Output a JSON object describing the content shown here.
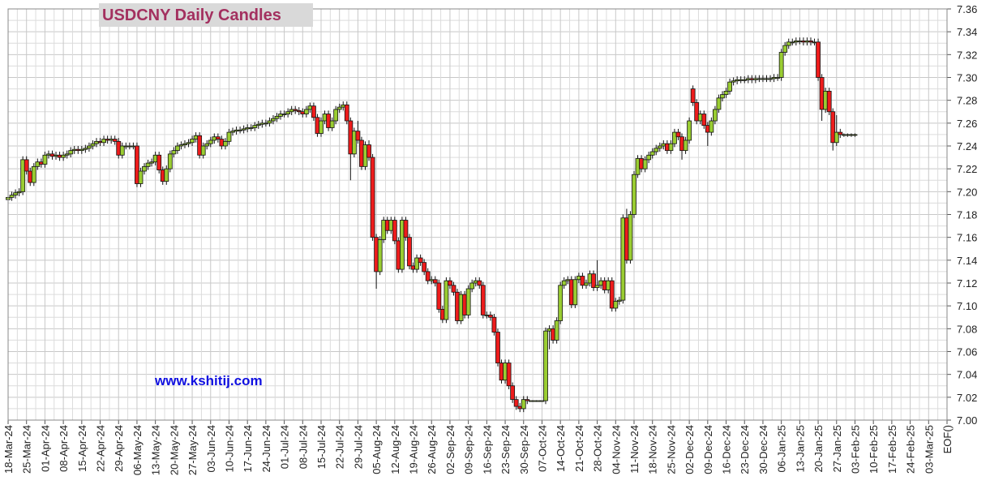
{
  "chart_data": {
    "type": "candlestick",
    "title": "USDCNY Daily Candles",
    "annotation": "www.kshitij.com",
    "up_color": "#9acd32",
    "down_color": "#ee1c1c",
    "grid": true,
    "ylim": [
      7.0,
      7.36
    ],
    "yticks": [
      {
        "value": 7,
        "label": "7.00"
      },
      7.02,
      7.04,
      7.06,
      7.08,
      {
        "value": 7.1,
        "label": "7.10"
      },
      7.12,
      7.14,
      7.16,
      7.18,
      {
        "value": 7.2,
        "label": "7.20"
      },
      7.22,
      7.24,
      7.26,
      7.28,
      {
        "value": 7.3,
        "label": "7.30"
      },
      7.32,
      7.34,
      7.36
    ],
    "categories": [
      "18-Mar-24",
      null,
      null,
      null,
      null,
      "25-Mar-24",
      null,
      null,
      null,
      null,
      "01-Apr-24",
      null,
      null,
      null,
      null,
      "08-Apr-24",
      null,
      null,
      null,
      null,
      "15-Apr-24",
      null,
      null,
      null,
      null,
      "22-Apr-24",
      null,
      null,
      null,
      null,
      "29-Apr-24",
      null,
      null,
      null,
      null,
      "06-May-24",
      null,
      null,
      null,
      null,
      "13-May-24",
      null,
      null,
      null,
      null,
      "20-May-24",
      null,
      null,
      null,
      null,
      "27-May-24",
      null,
      null,
      null,
      null,
      "03-Jun-24",
      null,
      null,
      null,
      null,
      "10-Jun-24",
      null,
      null,
      null,
      null,
      "17-Jun-24",
      null,
      null,
      null,
      null,
      "24-Jun-24",
      null,
      null,
      null,
      null,
      "01-Jul-24",
      null,
      null,
      null,
      null,
      "08-Jul-24",
      null,
      null,
      null,
      null,
      "15-Jul-24",
      null,
      null,
      null,
      null,
      "22-Jul-24",
      null,
      null,
      null,
      null,
      "29-Jul-24",
      null,
      null,
      null,
      null,
      "05-Aug-24",
      null,
      null,
      null,
      null,
      "12-Aug-24",
      null,
      null,
      null,
      null,
      "19-Aug-24",
      null,
      null,
      null,
      null,
      "26-Aug-24",
      null,
      null,
      null,
      null,
      "02-Sep-24",
      null,
      null,
      null,
      null,
      "09-Sep-24",
      null,
      null,
      null,
      null,
      "16-Sep-24",
      null,
      null,
      null,
      null,
      "23-Sep-24",
      null,
      null,
      null,
      null,
      "30-Sep-24",
      null,
      null,
      null,
      null,
      "07-Oct-24",
      null,
      null,
      null,
      null,
      "14-Oct-24",
      null,
      null,
      null,
      null,
      "21-Oct-24",
      null,
      null,
      null,
      null,
      "28-Oct-24",
      null,
      null,
      null,
      null,
      "04-Nov-24",
      null,
      null,
      null,
      null,
      "11-Nov-24",
      null,
      null,
      null,
      null,
      "18-Nov-24",
      null,
      null,
      null,
      null,
      "25-Nov-24",
      null,
      null,
      null,
      null,
      "02-Dec-24",
      null,
      null,
      null,
      null,
      "09-Dec-24",
      null,
      null,
      null,
      null,
      "16-Dec-24",
      null,
      null,
      null,
      null,
      "23-Dec-24",
      null,
      null,
      null,
      null,
      "30-Dec-24",
      null,
      null,
      null,
      null,
      "06-Jan-25",
      null,
      null,
      null,
      null,
      "13-Jan-25",
      null,
      null,
      null,
      null,
      "20-Jan-25",
      null,
      null,
      null,
      null,
      "27-Jan-25",
      null,
      null,
      null,
      null,
      "03-Feb-25",
      null,
      null,
      null,
      null,
      "10-Feb-25",
      null,
      null,
      null,
      null,
      "17-Feb-25",
      null,
      null,
      null,
      null,
      "24-Feb-25",
      null,
      null,
      null,
      null,
      "03-Mar-25",
      null,
      null,
      null,
      null,
      "EOF()"
    ],
    "open": [
      7.193,
      7.195,
      7.197,
      7.199,
      7.2,
      7.228,
      7.218,
      7.208,
      7.222,
      7.226,
      7.224,
      7.232,
      7.233,
      7.231,
      7.232,
      7.23,
      7.232,
      7.233,
      7.236,
      7.237,
      7.236,
      7.237,
      7.238,
      7.24,
      7.242,
      7.244,
      7.243,
      7.246,
      7.245,
      7.246,
      7.244,
      7.232,
      7.24,
      7.24,
      7.24,
      7.24,
      7.207,
      7.218,
      7.222,
      7.225,
      7.226,
      7.232,
      7.219,
      7.209,
      7.22,
      7.233,
      7.236,
      7.24,
      7.241,
      7.242,
      7.243,
      7.246,
      7.249,
      7.232,
      7.24,
      7.242,
      7.245,
      7.248,
      7.246,
      7.24,
      7.244,
      7.252,
      7.253,
      7.254,
      7.254,
      7.255,
      7.256,
      7.256,
      7.258,
      7.259,
      7.26,
      7.26,
      7.262,
      7.264,
      7.266,
      7.268,
      7.268,
      7.27,
      7.272,
      7.271,
      7.27,
      7.268,
      7.272,
      7.275,
      7.265,
      7.251,
      7.262,
      7.268,
      7.256,
      7.262,
      7.272,
      7.274,
      7.276,
      7.262,
      7.233,
      7.253,
      7.245,
      7.222,
      7.241,
      7.23,
      7.16,
      7.13,
      7.158,
      7.175,
      7.166,
      7.175,
      7.157,
      7.132,
      7.175,
      7.16,
      7.135,
      7.132,
      7.142,
      7.138,
      7.13,
      7.122,
      7.123,
      7.12,
      7.097,
      7.088,
      7.122,
      7.118,
      7.112,
      7.087,
      7.11,
      7.092,
      7.115,
      7.12,
      7.122,
      7.118,
      7.092,
      7.092,
      7.09,
      7.077,
      7.05,
      7.035,
      7.05,
      7.03,
      7.018,
      7.012,
      7.01,
      7.018,
      7.017,
      7.017,
      7.017,
      7.017,
      7.017,
      7.078,
      7.08,
      7.07,
      7.087,
      7.118,
      7.122,
      7.123,
      7.101,
      7.123,
      7.126,
      7.118,
      7.12,
      7.128,
      7.116,
      7.118,
      7.122,
      7.114,
      7.122,
      7.098,
      7.104,
      7.105,
      7.177,
      7.14,
      7.18,
      7.215,
      7.229,
      7.22,
      7.228,
      7.232,
      7.235,
      7.238,
      7.24,
      7.242,
      7.236,
      7.242,
      7.252,
      7.248,
      7.236,
      7.245,
      7.29,
      7.278,
      7.262,
      7.268,
      7.258,
      7.252,
      7.262,
      7.272,
      7.282,
      7.285,
      7.288,
      7.296,
      7.297,
      7.298,
      7.298,
      7.298,
      7.299,
      7.298,
      7.299,
      7.299,
      7.299,
      7.299,
      7.299,
      7.3,
      7.3,
      7.322,
      7.328,
      7.331,
      7.331,
      7.332,
      7.332,
      7.331,
      7.332,
      7.331,
      7.331,
      7.3,
      7.272,
      7.288,
      7.27,
      7.243,
      7.252,
      7.25,
      7.25,
      7.25,
      7.25,
      null,
      null,
      null,
      null,
      null,
      null,
      null,
      null,
      null,
      null,
      null,
      null,
      null,
      null,
      null,
      null,
      null,
      null,
      null,
      null,
      null,
      null,
      null,
      null,
      null
    ],
    "high": [
      7.198,
      7.2,
      7.202,
      7.203,
      7.231,
      7.231,
      7.221,
      7.225,
      7.229,
      7.229,
      7.235,
      7.236,
      7.236,
      7.235,
      7.235,
      7.235,
      7.236,
      7.239,
      7.24,
      7.24,
      7.24,
      7.241,
      7.243,
      7.245,
      7.247,
      7.247,
      7.249,
      7.249,
      7.249,
      7.249,
      7.247,
      7.243,
      7.243,
      7.243,
      7.243,
      7.243,
      7.221,
      7.225,
      7.228,
      7.229,
      7.235,
      7.235,
      7.222,
      7.223,
      7.236,
      7.239,
      7.243,
      7.244,
      7.245,
      7.246,
      7.249,
      7.252,
      7.252,
      7.243,
      7.245,
      7.248,
      7.251,
      7.251,
      7.249,
      7.247,
      7.255,
      7.256,
      7.257,
      7.257,
      7.258,
      7.259,
      7.259,
      7.261,
      7.262,
      7.263,
      7.263,
      7.265,
      7.267,
      7.269,
      7.271,
      7.271,
      7.273,
      7.275,
      7.275,
      7.274,
      7.273,
      7.275,
      7.278,
      7.278,
      7.268,
      7.265,
      7.271,
      7.271,
      7.265,
      7.275,
      7.277,
      7.279,
      7.279,
      7.265,
      7.256,
      7.262,
      7.248,
      7.244,
      7.245,
      7.233,
      7.163,
      7.161,
      7.178,
      7.178,
      7.178,
      7.178,
      7.16,
      7.178,
      7.178,
      7.163,
      7.138,
      7.145,
      7.145,
      7.141,
      7.133,
      7.126,
      7.126,
      7.123,
      7.1,
      7.125,
      7.125,
      7.121,
      7.115,
      7.113,
      7.113,
      7.118,
      7.123,
      7.125,
      7.125,
      7.121,
      7.095,
      7.095,
      7.093,
      7.08,
      7.053,
      7.053,
      7.053,
      7.033,
      7.021,
      7.015,
      7.021,
      7.021,
      7.017,
      7.017,
      7.017,
      7.017,
      7.081,
      7.083,
      7.083,
      7.09,
      7.121,
      7.125,
      7.126,
      7.126,
      7.126,
      7.129,
      7.129,
      7.123,
      7.131,
      7.131,
      7.14,
      7.125,
      7.125,
      7.125,
      7.125,
      7.107,
      7.108,
      7.18,
      7.185,
      7.183,
      7.218,
      7.232,
      7.232,
      7.231,
      7.235,
      7.238,
      7.241,
      7.243,
      7.245,
      7.245,
      7.245,
      7.255,
      7.255,
      7.251,
      7.248,
      7.265,
      7.293,
      7.281,
      7.271,
      7.271,
      7.261,
      7.265,
      7.275,
      7.285,
      7.288,
      7.291,
      7.299,
      7.3,
      7.301,
      7.301,
      7.301,
      7.302,
      7.302,
      7.302,
      7.302,
      7.302,
      7.302,
      7.302,
      7.303,
      7.303,
      7.325,
      7.331,
      7.334,
      7.334,
      7.335,
      7.335,
      7.335,
      7.335,
      7.335,
      7.334,
      7.334,
      7.303,
      7.291,
      7.291,
      7.273,
      7.267,
      7.255,
      7.251,
      7.251,
      7.251,
      7.251,
      null,
      null,
      null,
      null,
      null,
      null,
      null,
      null,
      null,
      null,
      null,
      null,
      null,
      null,
      null,
      null,
      null,
      null,
      null,
      null,
      null,
      null,
      null,
      null,
      null
    ],
    "low": [
      7.19,
      7.192,
      7.194,
      7.196,
      7.197,
      7.215,
      7.205,
      7.205,
      7.219,
      7.221,
      7.221,
      7.229,
      7.228,
      7.228,
      7.227,
      7.227,
      7.229,
      7.23,
      7.233,
      7.233,
      7.233,
      7.234,
      7.235,
      7.237,
      7.239,
      7.24,
      7.24,
      7.242,
      7.242,
      7.241,
      7.229,
      7.229,
      7.237,
      7.237,
      7.237,
      7.204,
      7.204,
      7.215,
      7.219,
      7.222,
      7.223,
      7.216,
      7.206,
      7.206,
      7.217,
      7.23,
      7.233,
      7.237,
      7.238,
      7.239,
      7.24,
      7.243,
      7.229,
      7.229,
      7.237,
      7.239,
      7.242,
      7.243,
      7.237,
      7.237,
      7.241,
      7.249,
      7.25,
      7.251,
      7.251,
      7.252,
      7.253,
      7.253,
      7.255,
      7.256,
      7.257,
      7.257,
      7.259,
      7.261,
      7.263,
      7.265,
      7.265,
      7.267,
      7.268,
      7.267,
      7.265,
      7.265,
      7.269,
      7.262,
      7.248,
      7.248,
      7.259,
      7.253,
      7.253,
      7.259,
      7.269,
      7.271,
      7.259,
      7.21,
      7.23,
      7.242,
      7.219,
      7.219,
      7.227,
      7.157,
      7.115,
      7.127,
      7.155,
      7.163,
      7.163,
      7.154,
      7.129,
      7.129,
      7.157,
      7.132,
      7.129,
      7.129,
      7.135,
      7.127,
      7.119,
      7.119,
      7.117,
      7.094,
      7.085,
      7.085,
      7.115,
      7.109,
      7.084,
      7.084,
      7.089,
      7.089,
      7.112,
      7.117,
      7.115,
      7.089,
      7.089,
      7.087,
      7.074,
      7.047,
      7.032,
      7.032,
      7.027,
      7.015,
      7.009,
      7.007,
      7.007,
      7.014,
      7.017,
      7.017,
      7.017,
      7.017,
      7.014,
      7.062,
      7.067,
      7.067,
      7.084,
      7.115,
      7.119,
      7.098,
      7.098,
      7.12,
      7.115,
      7.115,
      7.117,
      7.113,
      7.113,
      7.115,
      7.111,
      7.111,
      7.095,
      7.095,
      7.101,
      7.102,
      7.137,
      7.137,
      7.177,
      7.212,
      7.217,
      7.217,
      7.225,
      7.229,
      7.232,
      7.235,
      7.237,
      7.233,
      7.233,
      7.239,
      7.245,
      7.228,
      7.233,
      7.242,
      7.275,
      7.259,
      7.259,
      7.255,
      7.24,
      7.249,
      7.259,
      7.269,
      7.279,
      7.282,
      7.285,
      7.293,
      7.294,
      7.295,
      7.295,
      7.295,
      7.295,
      7.295,
      7.296,
      7.296,
      7.296,
      7.296,
      7.296,
      7.297,
      7.297,
      7.319,
      7.325,
      7.328,
      7.328,
      7.329,
      7.328,
      7.328,
      7.328,
      7.328,
      7.297,
      7.262,
      7.269,
      7.267,
      7.236,
      7.24,
      7.247,
      7.248,
      7.248,
      7.248,
      7.248,
      null,
      null,
      null,
      null,
      null,
      null,
      null,
      null,
      null,
      null,
      null,
      null,
      null,
      null,
      null,
      null,
      null,
      null,
      null,
      null,
      null,
      null,
      null,
      null,
      null
    ],
    "close": [
      7.195,
      7.197,
      7.199,
      7.2,
      7.228,
      7.218,
      7.208,
      7.222,
      7.226,
      7.224,
      7.232,
      7.233,
      7.231,
      7.232,
      7.23,
      7.232,
      7.233,
      7.236,
      7.237,
      7.236,
      7.237,
      7.238,
      7.24,
      7.242,
      7.244,
      7.243,
      7.246,
      7.245,
      7.246,
      7.244,
      7.232,
      7.24,
      7.24,
      7.24,
      7.24,
      7.207,
      7.218,
      7.222,
      7.225,
      7.226,
      7.232,
      7.219,
      7.209,
      7.22,
      7.233,
      7.236,
      7.24,
      7.241,
      7.242,
      7.243,
      7.246,
      7.249,
      7.232,
      7.24,
      7.242,
      7.245,
      7.248,
      7.246,
      7.24,
      7.244,
      7.252,
      7.253,
      7.254,
      7.254,
      7.255,
      7.256,
      7.256,
      7.258,
      7.259,
      7.26,
      7.26,
      7.262,
      7.264,
      7.266,
      7.268,
      7.268,
      7.27,
      7.272,
      7.271,
      7.27,
      7.268,
      7.272,
      7.275,
      7.265,
      7.251,
      7.262,
      7.268,
      7.256,
      7.262,
      7.272,
      7.274,
      7.276,
      7.262,
      7.233,
      7.253,
      7.245,
      7.222,
      7.241,
      7.23,
      7.16,
      7.13,
      7.158,
      7.175,
      7.166,
      7.175,
      7.157,
      7.132,
      7.175,
      7.16,
      7.135,
      7.132,
      7.142,
      7.138,
      7.13,
      7.122,
      7.123,
      7.12,
      7.097,
      7.088,
      7.122,
      7.118,
      7.112,
      7.087,
      7.11,
      7.092,
      7.115,
      7.12,
      7.122,
      7.118,
      7.092,
      7.092,
      7.09,
      7.077,
      7.05,
      7.035,
      7.05,
      7.03,
      7.018,
      7.012,
      7.01,
      7.018,
      7.017,
      7.017,
      7.017,
      7.017,
      7.017,
      7.078,
      7.08,
      7.07,
      7.087,
      7.118,
      7.122,
      7.123,
      7.101,
      7.123,
      7.126,
      7.118,
      7.12,
      7.128,
      7.116,
      7.118,
      7.122,
      7.114,
      7.122,
      7.098,
      7.104,
      7.105,
      7.177,
      7.14,
      7.18,
      7.215,
      7.229,
      7.22,
      7.228,
      7.232,
      7.235,
      7.238,
      7.24,
      7.242,
      7.236,
      7.242,
      7.252,
      7.248,
      7.236,
      7.245,
      7.262,
      7.278,
      7.262,
      7.268,
      7.258,
      7.252,
      7.262,
      7.272,
      7.282,
      7.285,
      7.288,
      7.296,
      7.297,
      7.298,
      7.298,
      7.298,
      7.299,
      7.298,
      7.299,
      7.299,
      7.299,
      7.299,
      7.299,
      7.3,
      7.3,
      7.322,
      7.328,
      7.331,
      7.331,
      7.332,
      7.332,
      7.331,
      7.332,
      7.331,
      7.331,
      7.3,
      7.272,
      7.288,
      7.27,
      7.243,
      7.252,
      7.25,
      7.25,
      7.25,
      7.25,
      7.25,
      null,
      null,
      null,
      null,
      null,
      null,
      null,
      null,
      null,
      null,
      null,
      null,
      null,
      null,
      null,
      null,
      null,
      null,
      null,
      null,
      null,
      null,
      null,
      null,
      null
    ]
  }
}
